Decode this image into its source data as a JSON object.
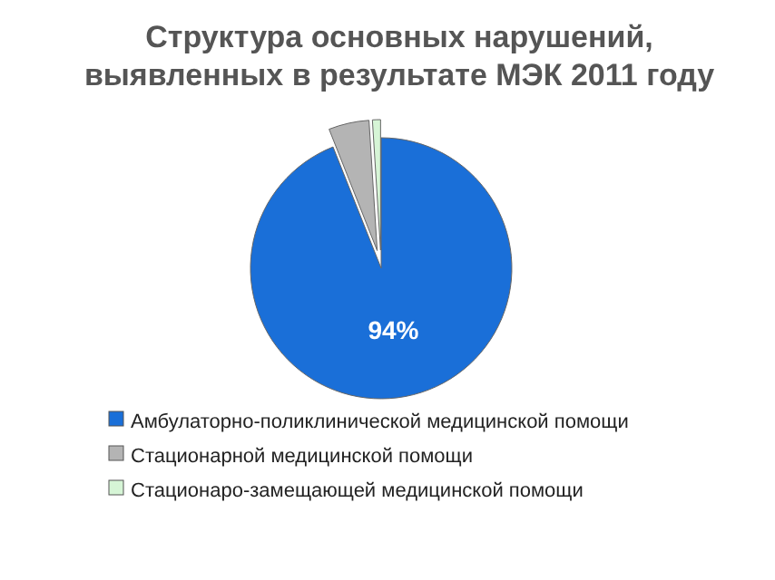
{
  "chart_data": {
    "type": "pie",
    "title": "Структура основных нарушений, выявленных в результате МЭК 2011 году",
    "categories": [
      "Амбулаторно-поликлинической медицинской помощи",
      "Стационарной медицинской помощи",
      "Стационаро-замещающей медицинской помощи"
    ],
    "values": [
      94,
      5,
      1
    ],
    "colors": [
      "#1a6fd8",
      "#b4b4b4",
      "#d6f5d6"
    ],
    "value_labels": [
      "94%",
      null,
      null
    ],
    "legend": "bottom"
  }
}
